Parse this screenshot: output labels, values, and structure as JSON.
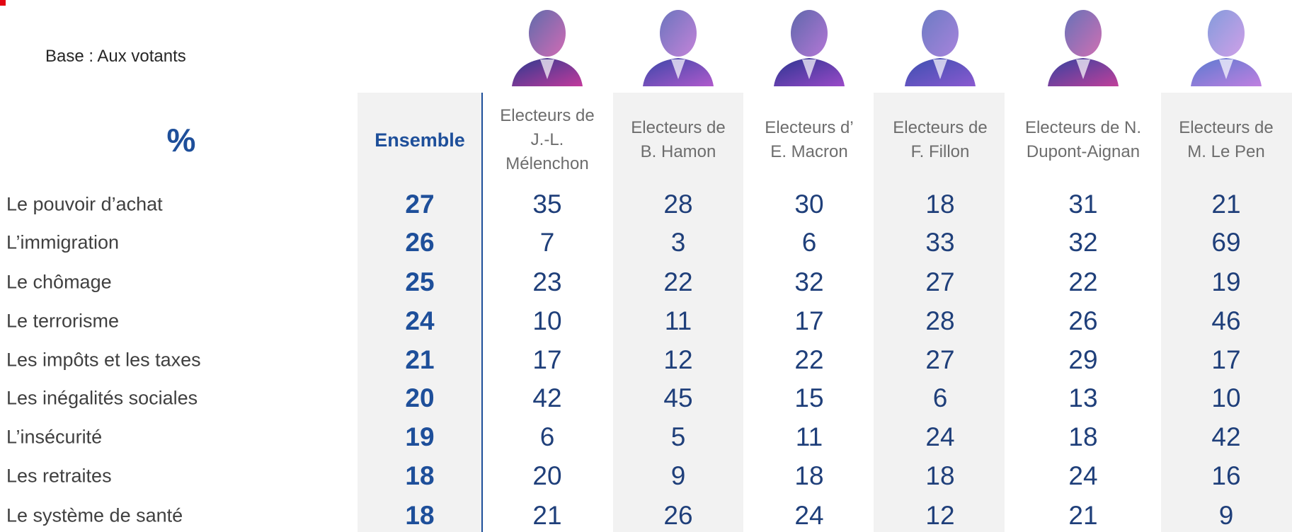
{
  "base": "Base :  Aux votants",
  "percent": "%",
  "columns": [
    {
      "lines": [
        "Ensemble"
      ]
    },
    {
      "lines": [
        "Electeurs de",
        "J.-L.",
        "Mélenchon"
      ]
    },
    {
      "lines": [
        "Electeurs de",
        "B. Hamon"
      ]
    },
    {
      "lines": [
        "Electeurs d’",
        "E. Macron"
      ]
    },
    {
      "lines": [
        "Electeurs de",
        "F. Fillon"
      ]
    },
    {
      "lines": [
        "Electeurs de N.",
        "Dupont-Aignan"
      ]
    },
    {
      "lines": [
        "Electeurs de",
        "M. Le Pen"
      ]
    }
  ],
  "rows": [
    {
      "label": "Le pouvoir d’achat",
      "values": [
        27,
        35,
        28,
        30,
        18,
        31,
        21
      ]
    },
    {
      "label": "L’immigration",
      "values": [
        26,
        7,
        3,
        6,
        33,
        32,
        69
      ]
    },
    {
      "label": "Le chômage",
      "values": [
        25,
        23,
        22,
        32,
        27,
        22,
        19
      ]
    },
    {
      "label": "Le terrorisme",
      "values": [
        24,
        10,
        11,
        17,
        28,
        26,
        46
      ]
    },
    {
      "label": "Les impôts et les taxes",
      "values": [
        21,
        17,
        12,
        22,
        27,
        29,
        17
      ]
    },
    {
      "label": "Les inégalités sociales",
      "values": [
        20,
        42,
        45,
        15,
        6,
        13,
        10
      ]
    },
    {
      "label": "L’insécurité",
      "values": [
        19,
        6,
        5,
        11,
        24,
        18,
        42
      ]
    },
    {
      "label": "Les retraites",
      "values": [
        18,
        20,
        9,
        18,
        18,
        24,
        16
      ]
    },
    {
      "label": "Le système de santé",
      "values": [
        18,
        21,
        26,
        24,
        12,
        21,
        9
      ]
    }
  ]
}
